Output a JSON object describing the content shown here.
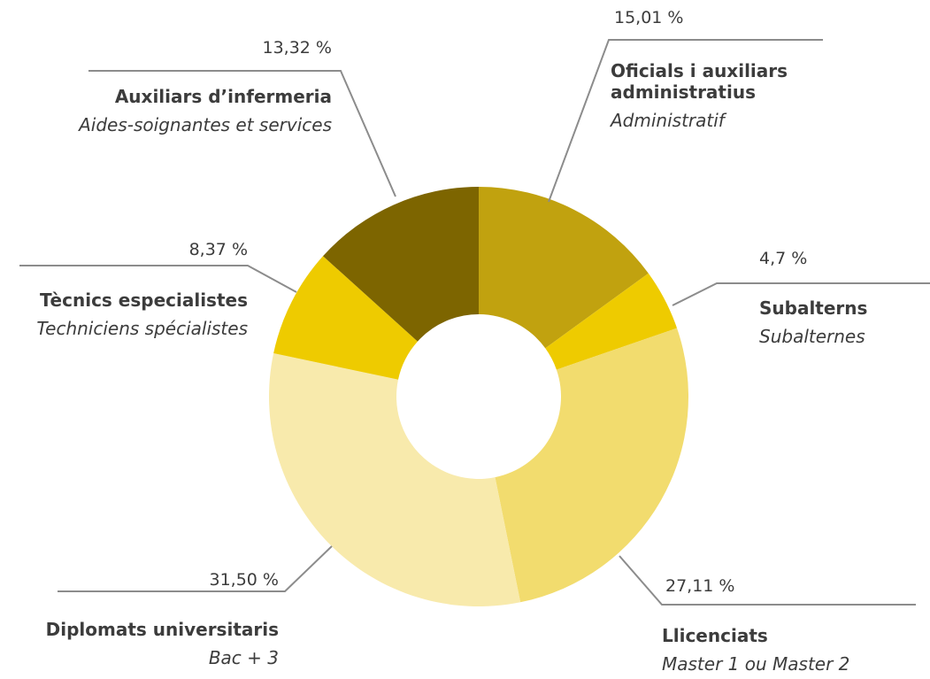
{
  "chart_data": {
    "type": "donut",
    "categories": [
      "Oficials i auxiliars administratius",
      "Subalterns",
      "Llicenciats",
      "Diplomats universitaris",
      "Tècnics especialistes",
      "Auxiliars d’infermeria"
    ],
    "subtitles": [
      "Administratif",
      "Subalternes",
      "Master 1 ou Master 2",
      "Bac + 3",
      "Techniciens spécialistes",
      "Aides-soignantes et services"
    ],
    "values": [
      15.01,
      4.7,
      27.11,
      31.5,
      8.37,
      13.32
    ],
    "value_labels": [
      "15,01 %",
      "4,7 %",
      "27,11 %",
      "31,50 %",
      "8,37 %",
      "13,32 %"
    ],
    "colors": [
      "#c1a20f",
      "#eecb00",
      "#f2dc6e",
      "#f8eaac",
      "#eecb00",
      "#7d6500"
    ]
  }
}
